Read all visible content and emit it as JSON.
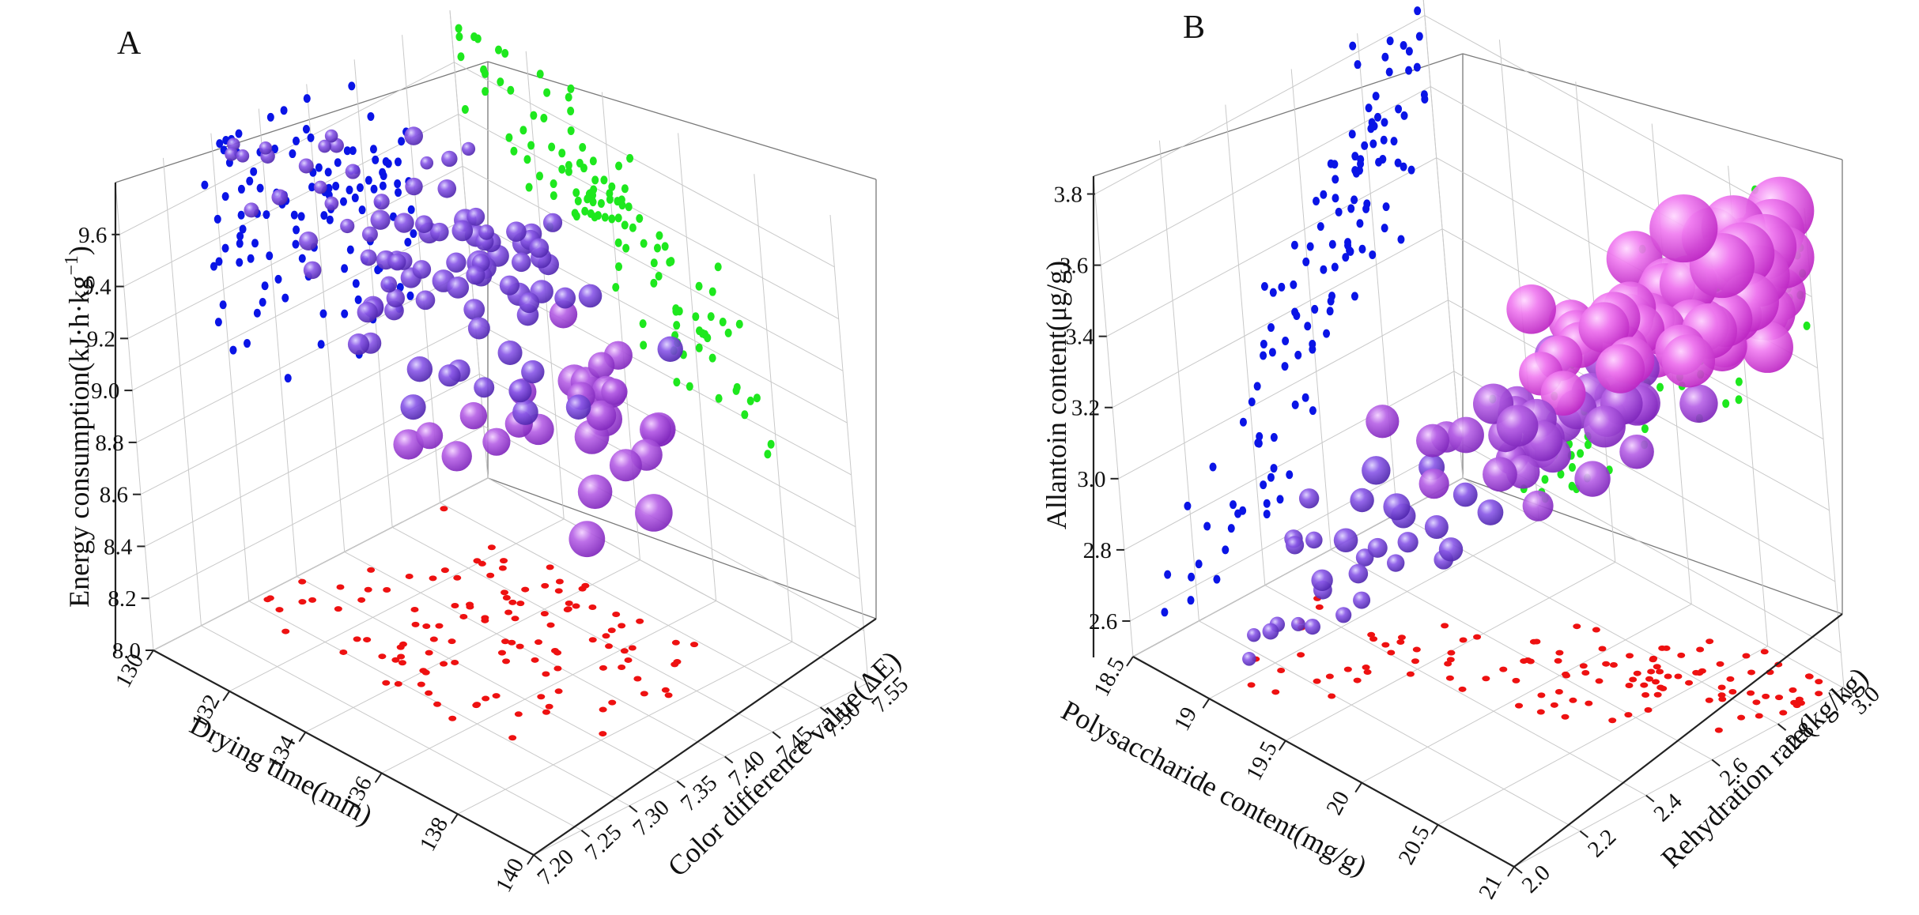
{
  "chart_data": [
    {
      "panel": "A",
      "type": "scatter",
      "subtype": "3d-bubble",
      "x_axis": {
        "label": "Drying time(min)",
        "ticks": [
          "130",
          "132",
          "134",
          "136",
          "138",
          "140"
        ],
        "range": [
          130,
          140
        ]
      },
      "y_axis": {
        "label": "Color difference value(ΔE)",
        "ticks": [
          "7.20",
          "7.25",
          "7.30",
          "7.35",
          "7.40",
          "7.45",
          "7.50",
          "7.55"
        ],
        "range": [
          7.2,
          7.55
        ]
      },
      "z_axis": {
        "label": "Energy consumption(kJ·h·kg⁻¹)",
        "label_main": "Energy consumption(kJ·h·kg",
        "label_sup": "−1",
        "label_close": ")",
        "ticks": [
          "8.0",
          "8.2",
          "8.4",
          "8.6",
          "8.8",
          "9.0",
          "9.2",
          "9.4",
          "9.6"
        ],
        "range": [
          8.0,
          9.8
        ]
      },
      "projection_colors": {
        "xz_wall": "#0a14e6",
        "yz_wall": "#1ee81e",
        "xy_floor": "#ee1111"
      },
      "bubble_color_scale": [
        "#e85ce8",
        "#7a48d8"
      ],
      "n_points": 120,
      "trend": "energy consumption decreases as drying time increases and as color difference increases"
    },
    {
      "panel": "B",
      "type": "scatter",
      "subtype": "3d-bubble",
      "x_axis": {
        "label": "Polysaccharide content(mg/g)",
        "ticks": [
          "18.5",
          "19",
          "19.5",
          "20",
          "20.5",
          "21"
        ],
        "range": [
          18.5,
          21
        ]
      },
      "y_axis": {
        "label": "Rehydration rate(kg/kg)",
        "ticks": [
          "2.0",
          "2.2",
          "2.4",
          "2.6",
          "2.8",
          "3.0"
        ],
        "range": [
          2.0,
          3.0
        ]
      },
      "z_axis": {
        "label": "Allantoin content(μg/g)",
        "ticks": [
          "2.6",
          "2.8",
          "3.0",
          "3.2",
          "3.4",
          "3.6",
          "3.8"
        ],
        "range": [
          2.5,
          3.85
        ]
      },
      "projection_colors": {
        "xz_wall": "#0a14e6",
        "yz_wall": "#1ee81e",
        "xy_floor": "#ee1111"
      },
      "bubble_color_scale": [
        "#7a48d8",
        "#e85ce8"
      ],
      "n_points": 120,
      "trend": "allantoin content increases with polysaccharide content and rehydration rate"
    }
  ]
}
